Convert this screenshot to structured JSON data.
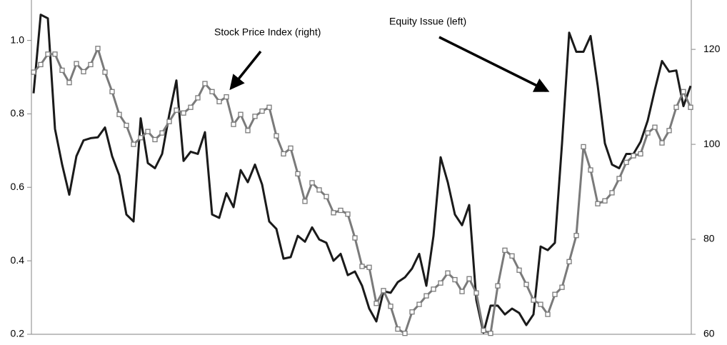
{
  "chart_data": {
    "type": "line",
    "categories": [
      null,
      null,
      null,
      null,
      null,
      null,
      null,
      null,
      null,
      null,
      null,
      null,
      null,
      null,
      null,
      null,
      null,
      null,
      null,
      null,
      null,
      null,
      null,
      null,
      null,
      null,
      null,
      null,
      null,
      null,
      null,
      null,
      null,
      null,
      null,
      null,
      null,
      null,
      null,
      null,
      null,
      null,
      null,
      null,
      null,
      null,
      null,
      null,
      null,
      null,
      null,
      null,
      null,
      null,
      null,
      null,
      null,
      null,
      null,
      null,
      null,
      null,
      null,
      null,
      null,
      null,
      null,
      null,
      null,
      null,
      null,
      null,
      null,
      null,
      null,
      null,
      null,
      null,
      null,
      null,
      null,
      null,
      null,
      null,
      null,
      null,
      null,
      null,
      null,
      null,
      null,
      null,
      null
    ],
    "ylim": [
      0.2,
      1.11
    ],
    "yticks": [
      {
        "value": 0.2,
        "label": "0.2"
      },
      {
        "value": 0.4,
        "label": "0.4"
      },
      {
        "value": 0.6,
        "label": "0.6"
      },
      {
        "value": 0.8,
        "label": "0.8"
      },
      {
        "value": 1.0,
        "label": "1.0"
      }
    ],
    "y2lim": [
      60,
      130.4
    ],
    "y2ticks": [
      60,
      80,
      100,
      120
    ],
    "annotations": [
      {
        "text": "Stock Price Index (right)",
        "target": "chart_data.series.1"
      },
      {
        "text": "Equity Issue (left)",
        "target": "chart_data.series.0"
      }
    ],
    "series": [
      {
        "axis": "y",
        "color": "#1a1a1a",
        "marker": "none",
        "values": [
          0.856,
          1.07,
          1.06,
          0.759,
          0.662,
          0.58,
          0.685,
          0.728,
          0.734,
          0.736,
          0.763,
          0.685,
          0.633,
          0.526,
          0.507,
          0.788,
          0.666,
          0.652,
          0.691,
          0.798,
          0.891,
          0.672,
          0.697,
          0.691,
          0.75,
          0.526,
          0.517,
          0.584,
          0.546,
          0.647,
          0.614,
          0.662,
          0.608,
          0.507,
          0.487,
          0.406,
          0.41,
          0.468,
          0.452,
          0.491,
          0.458,
          0.449,
          0.4,
          0.419,
          0.361,
          0.371,
          0.332,
          0.27,
          0.235,
          0.317,
          0.313,
          0.342,
          0.355,
          0.379,
          0.419,
          0.332,
          0.468,
          0.682,
          0.614,
          0.526,
          0.497,
          0.552,
          0.293,
          0.204,
          0.278,
          0.278,
          0.254,
          0.27,
          0.258,
          0.225,
          0.254,
          0.439,
          0.429,
          0.449,
          0.72,
          1.021,
          0.969,
          0.969,
          1.012,
          0.876,
          0.72,
          0.662,
          0.652,
          0.691,
          0.691,
          0.724,
          0.782,
          0.866,
          0.944,
          0.915,
          0.918,
          0.821,
          0.876
        ]
      },
      {
        "axis": "y2",
        "color": "#7a7a7a",
        "marker": "square",
        "values": [
          115.2,
          116.8,
          119,
          119,
          115.6,
          113,
          117,
          115.3,
          116.8,
          120.2,
          115.2,
          111.1,
          106.3,
          104,
          100,
          101.4,
          102.7,
          101,
          102.4,
          104.8,
          107.2,
          106.6,
          107.8,
          109.8,
          112.8,
          111.1,
          109,
          110,
          104.2,
          106.3,
          102.9,
          105.9,
          107,
          107.8,
          101.8,
          98,
          99.2,
          93.8,
          88,
          91.9,
          90.4,
          89,
          85.6,
          86.1,
          85.3,
          80.3,
          74.3,
          74.1,
          66.5,
          69.2,
          65.9,
          61.1,
          60.2,
          64.7,
          66.3,
          68.1,
          69.5,
          70.8,
          72.9,
          71.5,
          69,
          71.7,
          68.7,
          60.8,
          60.2,
          70.2,
          77.7,
          76.5,
          73.5,
          70.5,
          67.2,
          66.3,
          64.2,
          68.4,
          69.9,
          75.3,
          80.8,
          99.5,
          94.6,
          87.5,
          88.1,
          89.8,
          92.8,
          96.2,
          97.6,
          98,
          102.4,
          103.6,
          100.3,
          102.9,
          107.8,
          111.1,
          107.8
        ]
      }
    ]
  }
}
